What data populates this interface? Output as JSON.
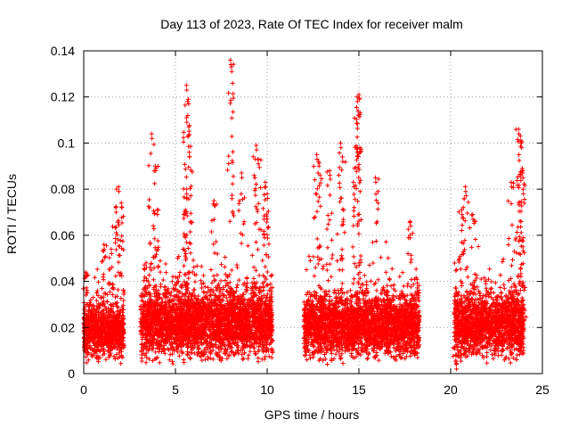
{
  "chart_data": {
    "type": "scatter",
    "title": "Day 113 of 2023, Rate Of TEC Index for receiver malm",
    "xlabel": "GPS time / hours",
    "ylabel": "ROTI / TECUs",
    "xlim": [
      0,
      25
    ],
    "ylim": [
      0,
      0.14
    ],
    "x_ticks": [
      "0",
      "5",
      "10",
      "15",
      "20",
      "25"
    ],
    "y_ticks": [
      "0",
      "0.02",
      "0.04",
      "0.06",
      "0.08",
      "0.1",
      "0.12",
      "0.14"
    ],
    "grid": true,
    "marker": "+",
    "color": "#ff0000",
    "segments": [
      {
        "x_start": 0.0,
        "x_end": 2.2,
        "base": 0.018,
        "spread": 0.012,
        "peaks": [
          [
            0.1,
            0.044
          ],
          [
            1.1,
            0.056
          ],
          [
            1.5,
            0.054
          ],
          [
            1.75,
            0.072
          ],
          [
            1.9,
            0.081
          ],
          [
            2.05,
            0.074
          ]
        ]
      },
      {
        "x_start": 3.1,
        "x_end": 10.3,
        "base": 0.022,
        "spread": 0.015,
        "peaks": [
          [
            3.4,
            0.048
          ],
          [
            3.7,
            0.104
          ],
          [
            3.9,
            0.09
          ],
          [
            4.0,
            0.071
          ],
          [
            5.6,
            0.125
          ],
          [
            5.7,
            0.119
          ],
          [
            5.6,
            0.111
          ],
          [
            5.75,
            0.096
          ],
          [
            5.6,
            0.08
          ],
          [
            7.1,
            0.075
          ],
          [
            8.0,
            0.136
          ],
          [
            8.05,
            0.133
          ],
          [
            8.6,
            0.087
          ],
          [
            9.4,
            0.099
          ],
          [
            9.5,
            0.093
          ],
          [
            9.9,
            0.083
          ],
          [
            10.0,
            0.078
          ]
        ]
      },
      {
        "x_start": 12.0,
        "x_end": 18.3,
        "base": 0.021,
        "spread": 0.014,
        "peaks": [
          [
            12.7,
            0.095
          ],
          [
            12.8,
            0.092
          ],
          [
            13.4,
            0.088
          ],
          [
            14.0,
            0.1
          ],
          [
            14.1,
            0.094
          ],
          [
            14.7,
            0.083
          ],
          [
            14.9,
            0.12
          ],
          [
            15.0,
            0.121
          ],
          [
            14.95,
            0.114
          ],
          [
            15.05,
            0.098
          ],
          [
            15.9,
            0.085
          ],
          [
            17.8,
            0.066
          ]
        ]
      },
      {
        "x_start": 20.2,
        "x_end": 24.0,
        "base": 0.021,
        "spread": 0.014,
        "peaks": [
          [
            20.3,
            0.004
          ],
          [
            20.6,
            0.071
          ],
          [
            20.8,
            0.081
          ],
          [
            21.2,
            0.069
          ],
          [
            23.3,
            0.083
          ],
          [
            23.7,
            0.106
          ],
          [
            23.8,
            0.103
          ],
          [
            23.85,
            0.1
          ],
          [
            23.9,
            0.089
          ],
          [
            23.95,
            0.08
          ]
        ]
      }
    ]
  }
}
